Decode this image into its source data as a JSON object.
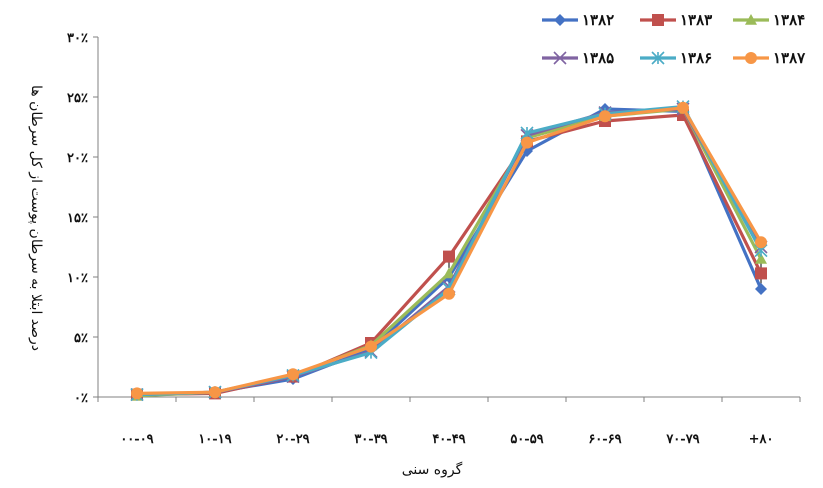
{
  "chart_data": {
    "type": "line",
    "xlabel": "گروه سنی",
    "ylabel": "درصد ابتلا به سرطان پوست از کل سرطان ها",
    "categories": [
      "۰۰-۰۹",
      "۱۰-۱۹",
      "۲۰-۲۹",
      "۳۰-۳۹",
      "۴۰-۴۹",
      "۵۰-۵۹",
      "۶۰-۶۹",
      "۷۰-۷۹",
      "+۸۰"
    ],
    "ylim": [
      0,
      30
    ],
    "yticks": [
      0,
      5,
      10,
      15,
      20,
      25,
      30
    ],
    "ytick_labels": [
      "۰٪",
      "۵٪",
      "۱۰٪",
      "۱۵٪",
      "۲۰٪",
      "۲۵٪",
      "۳۰٪"
    ],
    "legend_position": "top-right",
    "grid": false,
    "series": [
      {
        "name": "۱۳۸۲",
        "color": "#4472C4",
        "marker": "diamond",
        "values": [
          0.2,
          0.4,
          1.5,
          4.0,
          10.0,
          20.5,
          24.0,
          23.8,
          9.0
        ]
      },
      {
        "name": "۱۳۸۳",
        "color": "#C0504D",
        "marker": "square",
        "values": [
          0.2,
          0.3,
          1.7,
          4.5,
          11.7,
          21.3,
          23.0,
          23.5,
          10.3
        ]
      },
      {
        "name": "۱۳۸۴",
        "color": "#9BBB59",
        "marker": "triangle",
        "values": [
          0.1,
          0.4,
          1.8,
          4.3,
          10.3,
          21.6,
          23.4,
          24.0,
          11.5
        ]
      },
      {
        "name": "۱۳۸۵",
        "color": "#8064A2",
        "marker": "x",
        "values": [
          0.2,
          0.4,
          1.7,
          3.8,
          9.2,
          21.8,
          23.7,
          24.0,
          12.5
        ]
      },
      {
        "name": "۱۳۸۶",
        "color": "#4BACC6",
        "marker": "asterisk",
        "values": [
          0.2,
          0.4,
          1.8,
          3.7,
          9.0,
          22.0,
          23.6,
          24.2,
          12.2
        ]
      },
      {
        "name": "۱۳۸۷",
        "color": "#F79646",
        "marker": "circle",
        "values": [
          0.3,
          0.4,
          1.9,
          4.2,
          8.6,
          21.2,
          23.4,
          24.1,
          12.9
        ]
      }
    ]
  }
}
